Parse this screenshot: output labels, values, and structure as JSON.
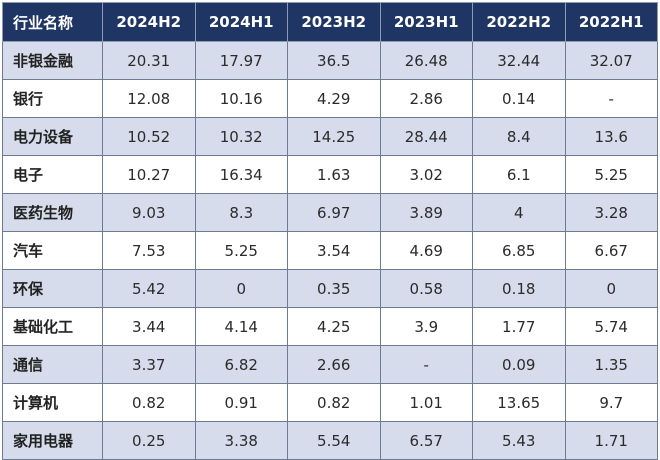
{
  "table": {
    "columns": [
      "行业名称",
      "2024H2",
      "2024H1",
      "2023H2",
      "2023H1",
      "2022H2",
      "2022H1"
    ],
    "rows": [
      [
        "非银金融",
        "20.31",
        "17.97",
        "36.5",
        "26.48",
        "32.44",
        "32.07"
      ],
      [
        "银行",
        "12.08",
        "10.16",
        "4.29",
        "2.86",
        "0.14",
        "-"
      ],
      [
        "电力设备",
        "10.52",
        "10.32",
        "14.25",
        "28.44",
        "8.4",
        "13.6"
      ],
      [
        "电子",
        "10.27",
        "16.34",
        "1.63",
        "3.02",
        "6.1",
        "5.25"
      ],
      [
        "医药生物",
        "9.03",
        "8.3",
        "6.97",
        "3.89",
        "4",
        "3.28"
      ],
      [
        "汽车",
        "7.53",
        "5.25",
        "3.54",
        "4.69",
        "6.85",
        "6.67"
      ],
      [
        "环保",
        "5.42",
        "0",
        "0.35",
        "0.58",
        "0.18",
        "0"
      ],
      [
        "基础化工",
        "3.44",
        "4.14",
        "4.25",
        "3.9",
        "1.77",
        "5.74"
      ],
      [
        "通信",
        "3.37",
        "6.82",
        "2.66",
        "-",
        "0.09",
        "1.35"
      ],
      [
        "计算机",
        "0.82",
        "0.91",
        "0.82",
        "1.01",
        "13.65",
        "9.7"
      ],
      [
        "家用电器",
        "0.25",
        "3.38",
        "5.54",
        "6.57",
        "5.43",
        "1.71"
      ]
    ]
  },
  "colors": {
    "header_bg": "#1f3564",
    "header_text": "#ffffff",
    "row_shade": "#d6dceb",
    "row_plain": "#ffffff",
    "border": "#6c7a92"
  }
}
